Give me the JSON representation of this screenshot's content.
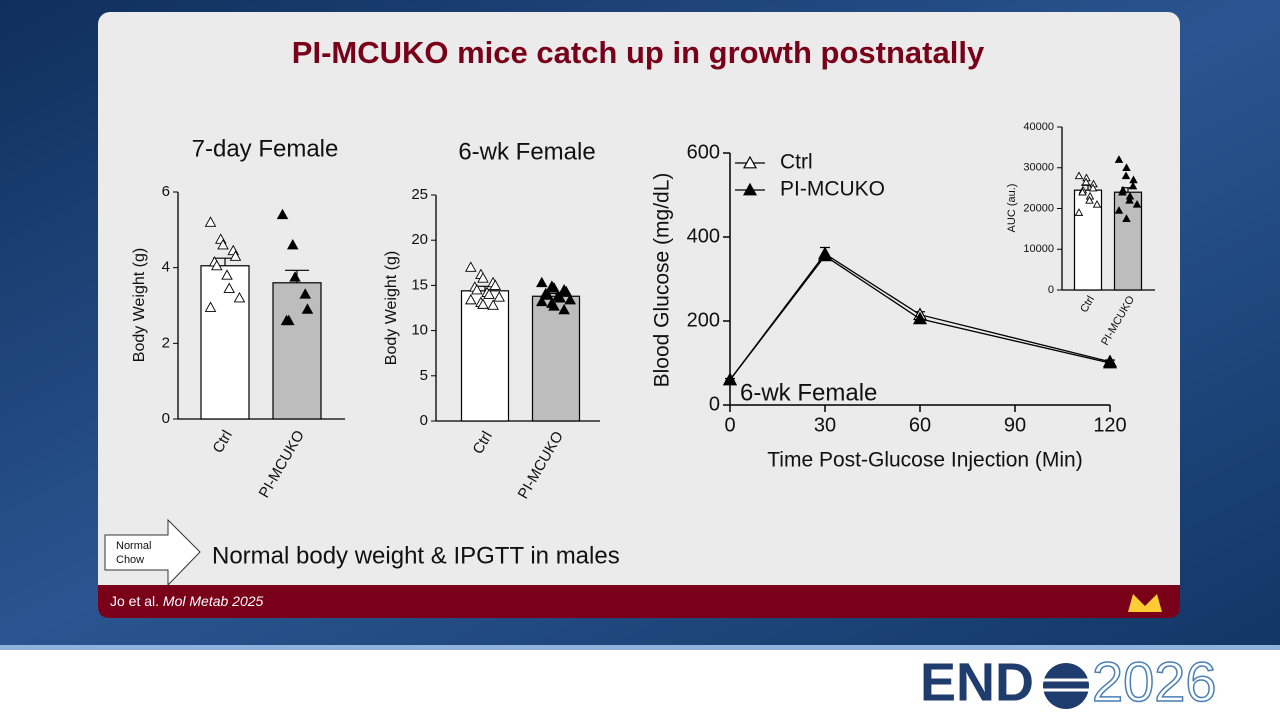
{
  "slide": {
    "title": "PI-MCUKO mice catch up in growth postnatally",
    "arrow_label": [
      "Normal",
      "Chow"
    ],
    "note": "Normal body weight & IPGTT in males",
    "footer": {
      "authors": "Jo et al.",
      "journal": "Mol Metab 2025"
    },
    "logo": {
      "word": "END",
      "year": "2026"
    }
  },
  "chart_data": [
    {
      "type": "bar",
      "title": "7-day Female",
      "ylabel": "Body Weight (g)",
      "categories": [
        "Ctrl",
        "PI-MCUKO"
      ],
      "values": [
        4.05,
        3.6
      ],
      "errors": [
        0.2,
        0.33
      ],
      "colors": [
        "#ffffff",
        "#bdbdbd"
      ],
      "point_fills": [
        "#ffffff",
        "#000000"
      ],
      "points": [
        [
          5.2,
          4.75,
          4.6,
          4.45,
          4.3,
          4.15,
          4.05,
          3.8,
          3.45,
          3.2,
          2.95
        ],
        [
          5.4,
          4.6,
          3.75,
          3.3,
          2.9,
          2.6,
          2.6
        ]
      ],
      "ylim": [
        0,
        6
      ],
      "yticks": [
        0,
        2,
        4,
        6
      ]
    },
    {
      "type": "bar",
      "title": "6-wk Female",
      "ylabel": "Body Weight (g)",
      "categories": [
        "Ctrl",
        "PI-MCUKO"
      ],
      "values": [
        14.4,
        13.8
      ],
      "errors": [
        0.5,
        0.3
      ],
      "colors": [
        "#ffffff",
        "#bdbdbd"
      ],
      "point_fills": [
        "#ffffff",
        "#000000"
      ],
      "points": [
        [
          17,
          16.2,
          15.8,
          15.3,
          15,
          14.8,
          14.5,
          14.2,
          14,
          13.7,
          13.4,
          13.1,
          12.9,
          12.8
        ],
        [
          15.3,
          14.9,
          14.7,
          14.5,
          14.3,
          14.1,
          13.9,
          13.8,
          13.6,
          13.4,
          13.2,
          13,
          12.7,
          12.3
        ]
      ],
      "ylim": [
        0,
        25
      ],
      "yticks": [
        0,
        5,
        10,
        15,
        20,
        25
      ]
    },
    {
      "type": "line",
      "annotation": "6-wk Female",
      "xlabel": "Time Post-Glucose Injection (Min)",
      "ylabel": "Blood Glucose (mg/dL)",
      "x": [
        0,
        30,
        60,
        120
      ],
      "series": [
        {
          "name": "Ctrl",
          "color": "#000000",
          "marker_fill": "#ffffff",
          "values": [
            60,
            360,
            215,
            103
          ],
          "errors": [
            3,
            15,
            7,
            4
          ]
        },
        {
          "name": "PI-MCUKO",
          "color": "#000000",
          "marker_fill": "#000000",
          "values": [
            60,
            355,
            205,
            100
          ]
        }
      ],
      "xlim": [
        0,
        120
      ],
      "xticks": [
        0,
        30,
        60,
        90,
        120
      ],
      "ylim": [
        0,
        600
      ],
      "yticks": [
        0,
        200,
        400,
        600
      ],
      "legend": "top-left"
    },
    {
      "type": "bar",
      "ylabel": "AUC (au.)",
      "categories": [
        "Ctrl",
        "PI-MCUKO"
      ],
      "values": [
        24500,
        24000
      ],
      "errors": [
        1200,
        1100
      ],
      "colors": [
        "#ffffff",
        "#bdbdbd"
      ],
      "point_fills": [
        "#ffffff",
        "#000000"
      ],
      "points": [
        [
          28000,
          27500,
          26500,
          26000,
          25000,
          24500,
          24000,
          23000,
          22000,
          21000,
          19000
        ],
        [
          32000,
          30000,
          28000,
          27000,
          25500,
          24500,
          24000,
          23000,
          22000,
          21000,
          19500,
          17500
        ]
      ],
      "ylim": [
        0,
        40000
      ],
      "yticks": [
        0,
        10000,
        20000,
        30000,
        40000
      ]
    }
  ]
}
